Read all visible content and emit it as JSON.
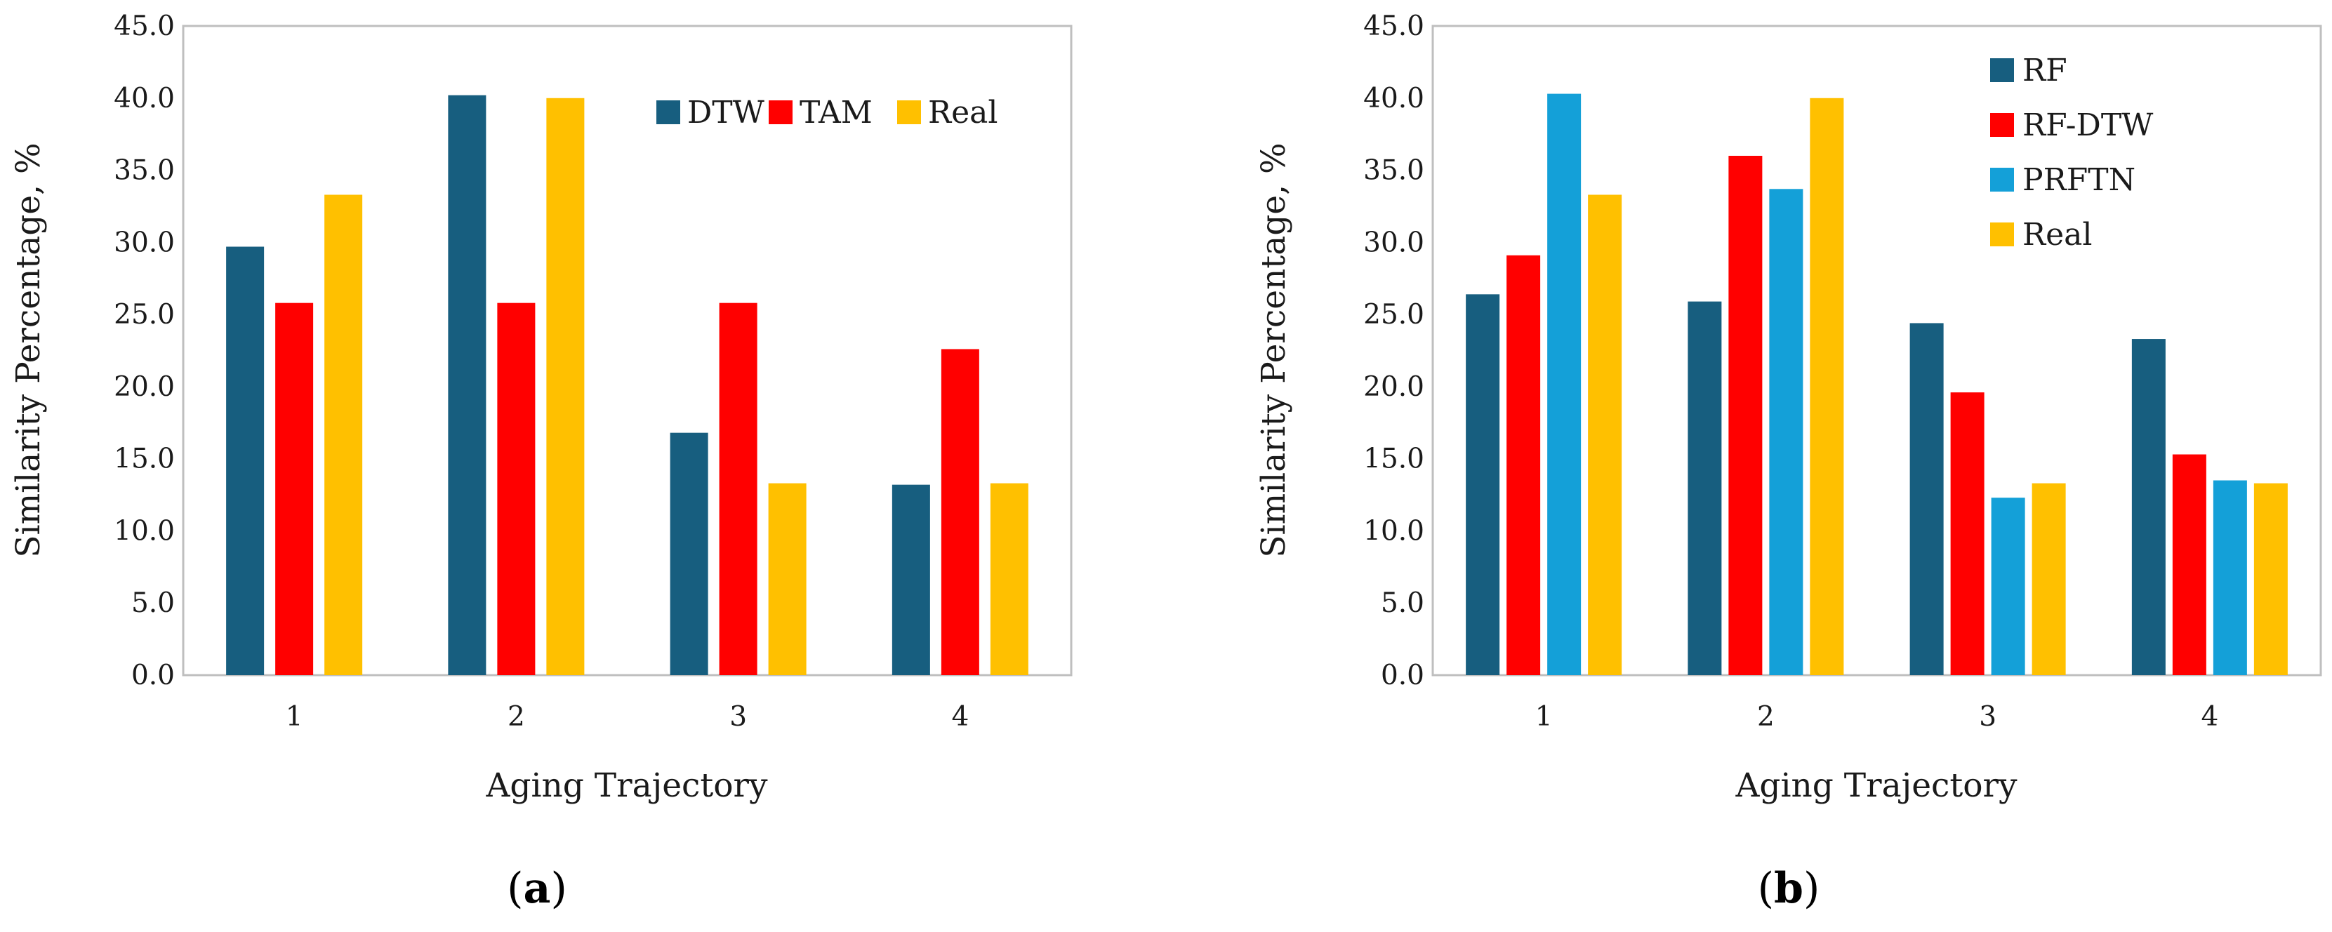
{
  "colors": {
    "DTW": "#175e7f",
    "TAM": "#ff0000",
    "Real": "#ffc000",
    "RF": "#175e7f",
    "RF-DTW": "#ff0000",
    "PRFTN": "#14a0d8",
    "axis": "#bfbfbf"
  },
  "chart_data": [
    {
      "panel": "a",
      "type": "bar",
      "xlabel": "Aging Trajectory",
      "ylabel": "Similarity Percentage, %",
      "ylim": [
        0,
        45
      ],
      "yticks": [
        "0.0",
        "5.0",
        "10.0",
        "15.0",
        "20.0",
        "25.0",
        "30.0",
        "35.0",
        "40.0",
        "45.0"
      ],
      "categories": [
        "1",
        "2",
        "3",
        "4"
      ],
      "legend_position": "top-right",
      "legend_layout": "horizontal",
      "series": [
        {
          "name": "DTW",
          "values": [
            29.7,
            40.2,
            16.8,
            13.2
          ]
        },
        {
          "name": "TAM",
          "values": [
            25.8,
            25.8,
            25.8,
            22.6
          ]
        },
        {
          "name": "Real",
          "values": [
            33.3,
            40.0,
            13.3,
            13.3
          ]
        }
      ]
    },
    {
      "panel": "b",
      "type": "bar",
      "xlabel": "Aging Trajectory",
      "ylabel": "Similarity Percentage, %",
      "ylim": [
        0,
        45
      ],
      "yticks": [
        "0.0",
        "5.0",
        "10.0",
        "15.0",
        "20.0",
        "25.0",
        "30.0",
        "35.0",
        "40.0",
        "45.0"
      ],
      "categories": [
        "1",
        "2",
        "3",
        "4"
      ],
      "legend_position": "top-right",
      "legend_layout": "vertical",
      "series": [
        {
          "name": "RF",
          "values": [
            26.4,
            25.9,
            24.4,
            23.3
          ]
        },
        {
          "name": "RF-DTW",
          "values": [
            29.1,
            36.0,
            19.6,
            15.3
          ]
        },
        {
          "name": "PRFTN",
          "values": [
            40.3,
            33.7,
            12.3,
            13.5
          ]
        },
        {
          "name": "Real",
          "values": [
            33.3,
            40.0,
            13.3,
            13.3
          ]
        }
      ]
    }
  ],
  "captions": [
    {
      "open": "(",
      "letter": "a",
      "close": ")"
    },
    {
      "open": "(",
      "letter": "b",
      "close": ")"
    }
  ]
}
